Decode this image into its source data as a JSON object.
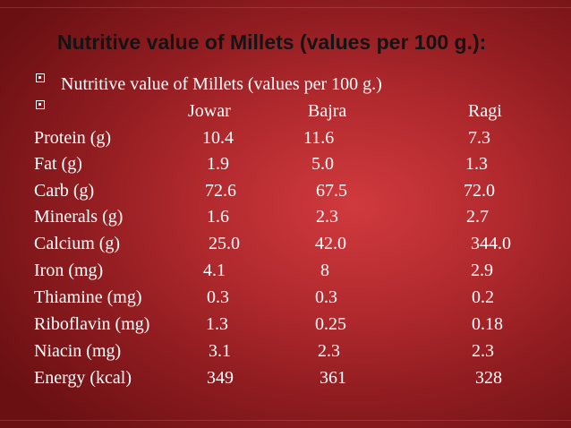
{
  "slide": {
    "title": "Nutritive value of Millets (values per 100 g.):",
    "subtitle": "Nutritive value of Millets (values per 100 g.)"
  },
  "table": {
    "headers": [
      "Jowar",
      "Bajra",
      "Ragi"
    ],
    "rows": [
      {
        "label": "Protein (g)",
        "values": [
          "10.4",
          "11.6",
          "7.3"
        ]
      },
      {
        "label": "Fat (g)",
        "values": [
          "1.9",
          "5.0",
          "1.3"
        ]
      },
      {
        "label": "Carb (g)",
        "values": [
          "72.6",
          "67.5",
          "72.0"
        ]
      },
      {
        "label": "Minerals (g)",
        "values": [
          "1.6",
          "2.3",
          "2.7"
        ]
      },
      {
        "label": "Calcium (g)",
        "values": [
          "25.0",
          "42.0",
          "344.0"
        ]
      },
      {
        "label": "Iron (mg)",
        "values": [
          "4.1",
          "8",
          "2.9"
        ]
      },
      {
        "label": "Thiamine (mg)",
        "values": [
          "0.3",
          "0.3",
          "0.2"
        ]
      },
      {
        "label": "Riboflavin (mg)",
        "values": [
          "1.3",
          "0.25",
          "0.18"
        ]
      },
      {
        "label": "Niacin (mg)",
        "values": [
          "3.1",
          "2.3",
          "2.3"
        ]
      },
      {
        "label": "Energy (kcal)",
        "values": [
          "349",
          "361",
          "328"
        ]
      }
    ]
  }
}
